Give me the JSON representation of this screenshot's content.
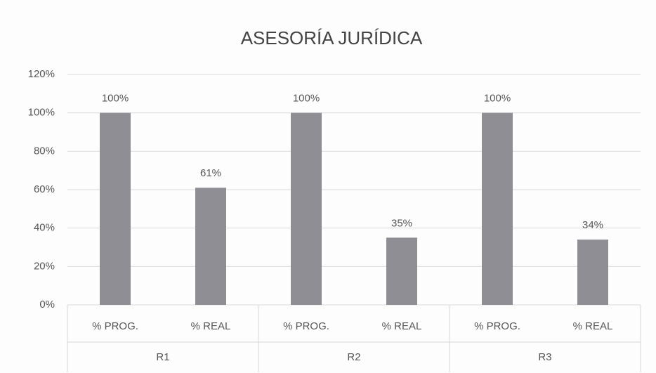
{
  "chart_data": {
    "type": "bar",
    "title": "ASESORÍA JURÍDICA",
    "groups": [
      "R1",
      "R2",
      "R3"
    ],
    "categories": [
      "% PROG.",
      "% REAL",
      "% PROG.",
      "% REAL",
      "% PROG.",
      "% REAL"
    ],
    "values": [
      100,
      61,
      100,
      35,
      100,
      34
    ],
    "value_labels": [
      "100%",
      "61%",
      "100%",
      "35%",
      "100%",
      "34%"
    ],
    "color": "#8e8e94",
    "ylim": [
      0,
      120
    ],
    "yticks": [
      {
        "value": 0,
        "label": "0%"
      },
      {
        "value": 20,
        "label": "20%"
      },
      {
        "value": 40,
        "label": "40%"
      },
      {
        "value": 60,
        "label": "60%"
      },
      {
        "value": 80,
        "label": "80%"
      },
      {
        "value": 100,
        "label": "100%"
      },
      {
        "value": 120,
        "label": "120%"
      }
    ],
    "grid": true
  }
}
